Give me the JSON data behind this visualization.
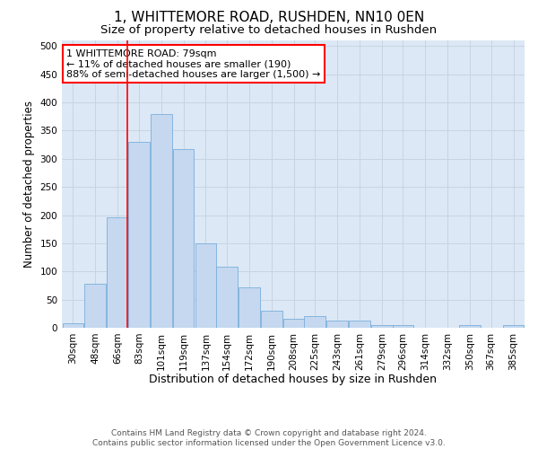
{
  "title1": "1, WHITTEMORE ROAD, RUSHDEN, NN10 0EN",
  "title2": "Size of property relative to detached houses in Rushden",
  "xlabel": "Distribution of detached houses by size in Rushden",
  "ylabel": "Number of detached properties",
  "bin_labels": [
    "30sqm",
    "48sqm",
    "66sqm",
    "83sqm",
    "101sqm",
    "119sqm",
    "137sqm",
    "154sqm",
    "172sqm",
    "190sqm",
    "208sqm",
    "225sqm",
    "243sqm",
    "261sqm",
    "279sqm",
    "296sqm",
    "314sqm",
    "332sqm",
    "350sqm",
    "367sqm",
    "385sqm"
  ],
  "bin_edges": [
    30,
    48,
    66,
    83,
    101,
    119,
    137,
    154,
    172,
    190,
    208,
    225,
    243,
    261,
    279,
    296,
    314,
    332,
    350,
    367,
    385
  ],
  "bin_width": 18,
  "bar_heights": [
    8,
    78,
    196,
    330,
    379,
    317,
    150,
    108,
    72,
    30,
    16,
    20,
    12,
    12,
    5,
    4,
    0,
    0,
    4,
    0,
    4
  ],
  "bar_color": "#c5d8f0",
  "bar_edge_color": "#7aaedc",
  "vline_x": 83,
  "vline_color": "red",
  "annotation_text": "1 WHITTEMORE ROAD: 79sqm\n← 11% of detached houses are smaller (190)\n88% of semi-detached houses are larger (1,500) →",
  "annotation_box_color": "white",
  "annotation_box_edge_color": "red",
  "ylim": [
    0,
    510
  ],
  "yticks": [
    0,
    50,
    100,
    150,
    200,
    250,
    300,
    350,
    400,
    450,
    500
  ],
  "grid_color": "#c8d4e0",
  "bg_color": "#dce8f5",
  "footer_text": "Contains HM Land Registry data © Crown copyright and database right 2024.\nContains public sector information licensed under the Open Government Licence v3.0.",
  "title1_fontsize": 11,
  "title2_fontsize": 9.5,
  "xlabel_fontsize": 9,
  "ylabel_fontsize": 8.5,
  "tick_fontsize": 7.5,
  "annot_fontsize": 8,
  "footer_fontsize": 6.5
}
